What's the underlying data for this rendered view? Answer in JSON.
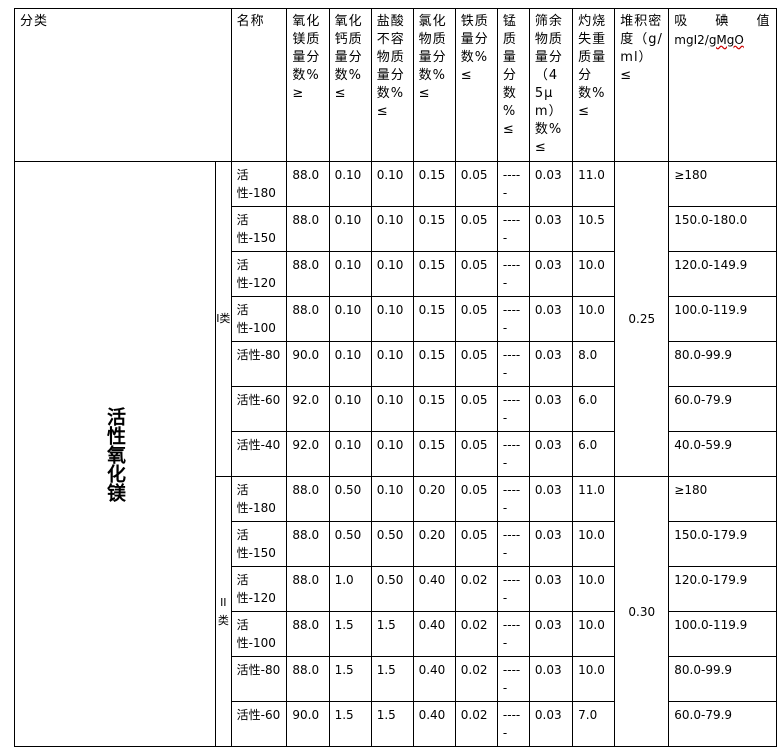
{
  "headers": {
    "category": "分类",
    "name": "名称",
    "mgo": "氧化镁质量分数%≥",
    "cao": "氧化钙质量分数%≤",
    "hcl_insoluble": "盐酸不容物质量分数%≤",
    "chloride": "氯化物质量分数%≤",
    "iron": "铁质量分数%≤",
    "manganese": "锰质量分数 %≤",
    "sieve": "筛余物质量分（45μm）数%≤",
    "ignition_loss": "灼烧失重质量分数%≤",
    "bulk_density": "堆积密度（g/ml）≤",
    "iodine_title": "吸 碘 值",
    "iodine_unit_prefix": "mgI2/",
    "iodine_unit_suffix": "gMgO"
  },
  "category_label": "活性氧化镁",
  "groups": [
    {
      "label": "I类",
      "bulk_density": "0.25",
      "rows": [
        [
          "活性-180",
          "88.0",
          "0.10",
          "0.10",
          "0.15",
          "0.05",
          "-----",
          "0.03",
          "11.0",
          "≥180"
        ],
        [
          "活性-150",
          "88.0",
          "0.10",
          "0.10",
          "0.15",
          "0.05",
          "-----",
          "0.03",
          "10.5",
          "150.0-180.0"
        ],
        [
          "活性-120",
          "88.0",
          "0.10",
          "0.10",
          "0.15",
          "0.05",
          "-----",
          "0.03",
          "10.0",
          "120.0-149.9"
        ],
        [
          "活性-100",
          "88.0",
          "0.10",
          "0.10",
          "0.15",
          "0.05",
          "-----",
          "0.03",
          "10.0",
          "100.0-119.9"
        ],
        [
          "活性-80",
          "90.0",
          "0.10",
          "0.10",
          "0.15",
          "0.05",
          "-----",
          "0.03",
          "8.0",
          "80.0-99.9"
        ],
        [
          "活性-60",
          "92.0",
          "0.10",
          "0.10",
          "0.15",
          "0.05",
          "-----",
          "0.03",
          "6.0",
          "60.0-79.9"
        ],
        [
          "活性-40",
          "92.0",
          "0.10",
          "0.10",
          "0.15",
          "0.05",
          "-----",
          "0.03",
          "6.0",
          "40.0-59.9"
        ]
      ]
    },
    {
      "label": "II类",
      "bulk_density": "0.30",
      "rows": [
        [
          "活性-180",
          "88.0",
          "0.50",
          "0.10",
          "0.20",
          "0.05",
          "-----",
          "0.03",
          "11.0",
          "≥180"
        ],
        [
          "活性-150",
          "88.0",
          "0.50",
          "0.50",
          "0.20",
          "0.05",
          "-----",
          "0.03",
          "10.0",
          "150.0-179.9"
        ],
        [
          "活性-120",
          "88.0",
          "1.0",
          "0.50",
          "0.40",
          "0.02",
          "-----",
          "0.03",
          "10.0",
          "120.0-179.9"
        ],
        [
          "活性-100",
          "88.0",
          "1.5",
          "1.5",
          "0.40",
          "0.02",
          "-----",
          "0.03",
          "10.0",
          "100.0-119.9"
        ],
        [
          "活性-80",
          "88.0",
          "1.5",
          "1.5",
          "0.40",
          "0.02",
          "-----",
          "0.03",
          "10.0",
          "80.0-99.9"
        ],
        [
          "活性-60",
          "90.0",
          "1.5",
          "1.5",
          "0.40",
          "0.02",
          "-----",
          "0.03",
          "7.0",
          "60.0-79.9"
        ]
      ]
    }
  ]
}
